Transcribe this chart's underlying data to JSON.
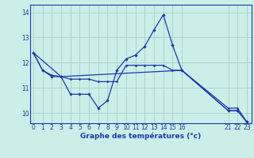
{
  "background_color": "#cceee8",
  "grid_color": "#aad4cc",
  "line_color": "#1a3aaa",
  "line1": {
    "x": [
      0,
      1,
      2,
      3,
      4,
      5,
      6,
      7,
      8,
      9,
      10,
      11,
      12,
      13,
      14,
      15,
      16,
      21,
      22,
      23
    ],
    "y": [
      12.4,
      11.7,
      11.45,
      11.45,
      10.75,
      10.75,
      10.75,
      10.2,
      10.5,
      11.7,
      12.15,
      12.3,
      12.65,
      13.3,
      13.9,
      12.7,
      11.7,
      10.1,
      10.1,
      9.65
    ]
  },
  "line2": {
    "x": [
      0,
      1,
      2,
      3,
      4,
      5,
      6,
      7,
      8,
      9,
      10,
      11,
      12,
      13,
      14,
      15,
      16,
      21,
      22,
      23
    ],
    "y": [
      12.4,
      11.7,
      11.5,
      11.45,
      11.35,
      11.35,
      11.35,
      11.25,
      11.25,
      11.25,
      11.9,
      11.9,
      11.9,
      11.9,
      11.9,
      11.7,
      11.7,
      10.2,
      10.2,
      9.65
    ]
  },
  "line3": {
    "x": [
      0,
      3,
      16,
      21,
      22,
      23
    ],
    "y": [
      12.4,
      11.45,
      11.7,
      10.1,
      10.1,
      9.65
    ]
  },
  "xlim": [
    -0.3,
    23.5
  ],
  "ylim": [
    9.6,
    14.3
  ],
  "xtick_positions": [
    0,
    1,
    2,
    3,
    4,
    5,
    6,
    7,
    8,
    9,
    10,
    11,
    12,
    13,
    14,
    15,
    16,
    21,
    22,
    23
  ],
  "xtick_labels": [
    "0",
    "1",
    "2",
    "3",
    "4",
    "5",
    "6",
    "7",
    "8",
    "9",
    "10",
    "11",
    "12",
    "13",
    "14",
    "15",
    "16",
    "21",
    "22",
    "23"
  ],
  "ytick_positions": [
    10,
    11,
    12,
    13,
    14
  ],
  "ytick_labels": [
    "10",
    "11",
    "12",
    "13",
    "14"
  ],
  "xlabel": "Graphe des températures (°c)",
  "xlabel_color": "#1a3aaa",
  "tick_color": "#1a3aaa",
  "tick_fontsize": 5.5,
  "xlabel_fontsize": 6.5
}
